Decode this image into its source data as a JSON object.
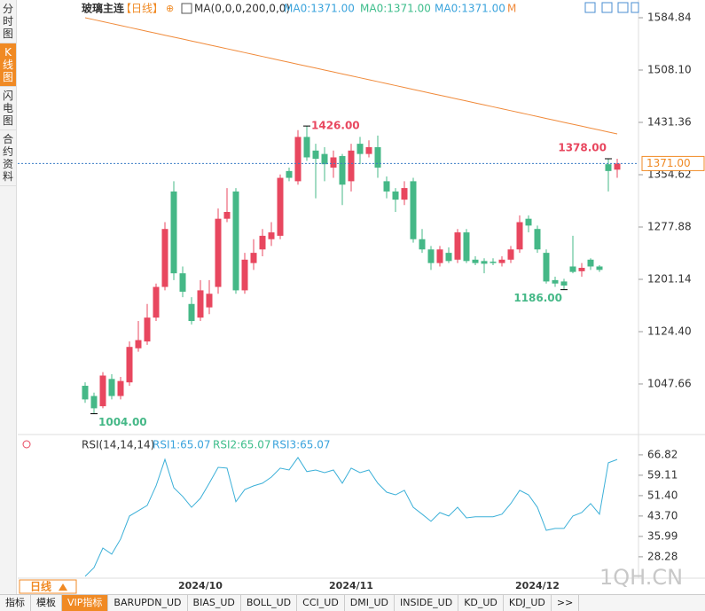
{
  "sidebar": [
    "分时图",
    "K线图",
    "闪电图",
    "合约资料"
  ],
  "header": {
    "symbol": "玻璃主连",
    "period": "【日线】",
    "plus": "⊕",
    "ma_params": "MA(0,0,0,200,0,0)",
    "ma_values": [
      "MA0:1371.00",
      "MA0:1371.00",
      "MA0:1371.00"
    ],
    "m": "M"
  },
  "rsi_header": {
    "title": "RSI(14,14,14)",
    "values": [
      "RSI1:65.07",
      "RSI2:65.07",
      "RSI3:65.07"
    ]
  },
  "period_button": "日线",
  "watermark": "1QH.CN",
  "tabs": [
    "指标",
    "模板",
    "VIP指标",
    "BARUPDN_UD",
    "BIAS_UD",
    "BOLL_UD",
    "CCI_UD",
    "DMI_UD",
    "INSIDE_UD",
    "KD_UD",
    "KDJ_UD",
    ">>"
  ],
  "chart_data": [
    {
      "type": "candlestick",
      "categories": [
        null,
        null,
        null,
        null,
        null,
        null,
        null,
        null,
        null,
        null,
        null,
        null,
        null,
        "2024/10",
        null,
        null,
        null,
        null,
        null,
        null,
        null,
        null,
        null,
        null,
        null,
        null,
        null,
        null,
        null,
        null,
        "2024/11",
        null,
        null,
        null,
        null,
        null,
        null,
        null,
        null,
        null,
        null,
        null,
        null,
        null,
        null,
        null,
        null,
        null,
        null,
        null,
        null,
        "2024/12",
        null,
        null,
        null,
        null,
        null,
        null,
        null,
        null,
        null
      ],
      "open": [
        1045,
        1030,
        1015,
        1055,
        1030,
        1050,
        1100,
        1110,
        1145,
        1190,
        1330,
        1210,
        1165,
        1145,
        1160,
        1190,
        1290,
        1330,
        1185,
        1225,
        1245,
        1260,
        1265,
        1360,
        1345,
        1410,
        1390,
        1385,
        1365,
        1382,
        1345,
        1400,
        1385,
        1395,
        1345,
        1330,
        1318,
        1345,
        1260,
        1245,
        1225,
        1240,
        1230,
        1270,
        1230,
        1228,
        1227,
        1225,
        1230,
        1245,
        1290,
        1275,
        1240,
        1200,
        1198,
        1220,
        1213,
        1230,
        1220,
        1370,
        1362
      ],
      "high": [
        1050,
        1035,
        1065,
        1062,
        1058,
        1110,
        1140,
        1165,
        1195,
        1285,
        1345,
        1220,
        1175,
        1200,
        1200,
        1305,
        1335,
        1335,
        1240,
        1260,
        1275,
        1285,
        1355,
        1365,
        1420,
        1426,
        1400,
        1395,
        1390,
        1385,
        1400,
        1410,
        1405,
        1412,
        1352,
        1335,
        1345,
        1350,
        1275,
        1250,
        1250,
        1248,
        1275,
        1275,
        1235,
        1232,
        1232,
        1235,
        1250,
        1295,
        1295,
        1280,
        1245,
        1205,
        1202,
        1265,
        1225,
        1232,
        1222,
        1378,
        1378
      ],
      "low": [
        1020,
        1004,
        1012,
        1025,
        1025,
        1045,
        1095,
        1105,
        1140,
        1185,
        1200,
        1175,
        1135,
        1140,
        1150,
        1180,
        1285,
        1180,
        1180,
        1215,
        1235,
        1250,
        1260,
        1345,
        1340,
        1375,
        1320,
        1345,
        1350,
        1310,
        1330,
        1370,
        1380,
        1350,
        1320,
        1300,
        1310,
        1255,
        1240,
        1215,
        1220,
        1225,
        1225,
        1225,
        1222,
        1210,
        1222,
        1220,
        1225,
        1240,
        1270,
        1240,
        1195,
        1190,
        1186,
        1210,
        1205,
        1215,
        1212,
        1330,
        1350
      ],
      "close": [
        1025,
        1012,
        1060,
        1030,
        1052,
        1102,
        1112,
        1145,
        1190,
        1275,
        1210,
        1183,
        1140,
        1185,
        1180,
        1290,
        1300,
        1185,
        1230,
        1240,
        1265,
        1270,
        1350,
        1350,
        1410,
        1380,
        1378,
        1370,
        1380,
        1340,
        1390,
        1385,
        1395,
        1365,
        1330,
        1318,
        1335,
        1260,
        1245,
        1225,
        1245,
        1228,
        1270,
        1228,
        1225,
        1224,
        1225,
        1230,
        1245,
        1285,
        1280,
        1245,
        1198,
        1195,
        1192,
        1212,
        1218,
        1220,
        1215,
        1360,
        1371
      ],
      "up_color": "#e8475f",
      "down_color": "#45b887",
      "ma": {
        "color": "#f08a3a",
        "values": [
          1584.8,
          1582.0,
          1579.1,
          1576.3,
          1573.4,
          1570.6,
          1567.8,
          1564.9,
          1562.1,
          1559.2,
          1556.4,
          1553.6,
          1550.7,
          1547.9,
          1545.0,
          1542.2,
          1539.4,
          1536.5,
          1533.7,
          1530.8,
          1528.0,
          1525.2,
          1522.3,
          1519.5,
          1516.6,
          1513.8,
          1511.0,
          1508.1,
          1505.3,
          1502.4,
          1499.6,
          1496.8,
          1493.9,
          1491.1,
          1488.2,
          1485.4,
          1482.6,
          1479.7,
          1476.9,
          1474.0,
          1471.2,
          1468.4,
          1465.5,
          1462.7,
          1459.8,
          1457.0,
          1454.2,
          1451.3,
          1448.5,
          1445.6,
          1442.8,
          1440.0,
          1437.1,
          1434.3,
          1431.4,
          1428.6,
          1425.8,
          1422.9,
          1420.1,
          1417.2,
          1414.4
        ]
      },
      "last_price": {
        "value": 1371,
        "label": "1371.00"
      },
      "annotations": [
        {
          "value": 1426,
          "label": "1426.00"
        },
        {
          "value": 1004,
          "label": "1004.00"
        },
        {
          "value": 1186,
          "label": "1186.00"
        },
        {
          "value": 1378,
          "label": "1378.00"
        }
      ],
      "ylim": [
        976.1,
        1610.85
      ],
      "yticks": [
        1584.84,
        {
          "value": 1508.1,
          "label": "1508.10"
        },
        1431.36,
        1354.62,
        1277.88,
        1201.14,
        {
          "value": 1124.4,
          "label": "1124.40"
        },
        1047.66
      ]
    },
    {
      "type": "line",
      "series": [
        {
          "color": "#3cb0d8",
          "values": [
            20.9,
            24.2,
            31.6,
            29.3,
            35.0,
            43.7,
            45.7,
            47.7,
            55.1,
            65.1,
            54.4,
            51.1,
            47.0,
            50.4,
            56.1,
            62.1,
            61.8,
            49.1,
            53.7,
            55.1,
            56.1,
            58.4,
            61.8,
            61.1,
            65.8,
            60.5,
            61.1,
            60.1,
            61.1,
            56.1,
            61.8,
            60.1,
            61.1,
            56.1,
            52.7,
            51.7,
            53.4,
            47.0,
            44.4,
            41.7,
            45.0,
            43.7,
            47.0,
            43.0,
            43.4,
            43.4,
            43.4,
            44.4,
            48.4,
            53.4,
            51.7,
            47.0,
            38.3,
            39.0,
            39.0,
            43.7,
            45.0,
            48.4,
            44.4,
            63.8,
            65.07
          ]
        }
      ],
      "ylim": [
        20.2,
        68.8
      ],
      "yticks": [
        66.82,
        59.11,
        {
          "value": 51.4,
          "label": "51.40"
        },
        {
          "value": 43.7,
          "label": "43.70"
        },
        35.99,
        28.28
      ]
    }
  ]
}
